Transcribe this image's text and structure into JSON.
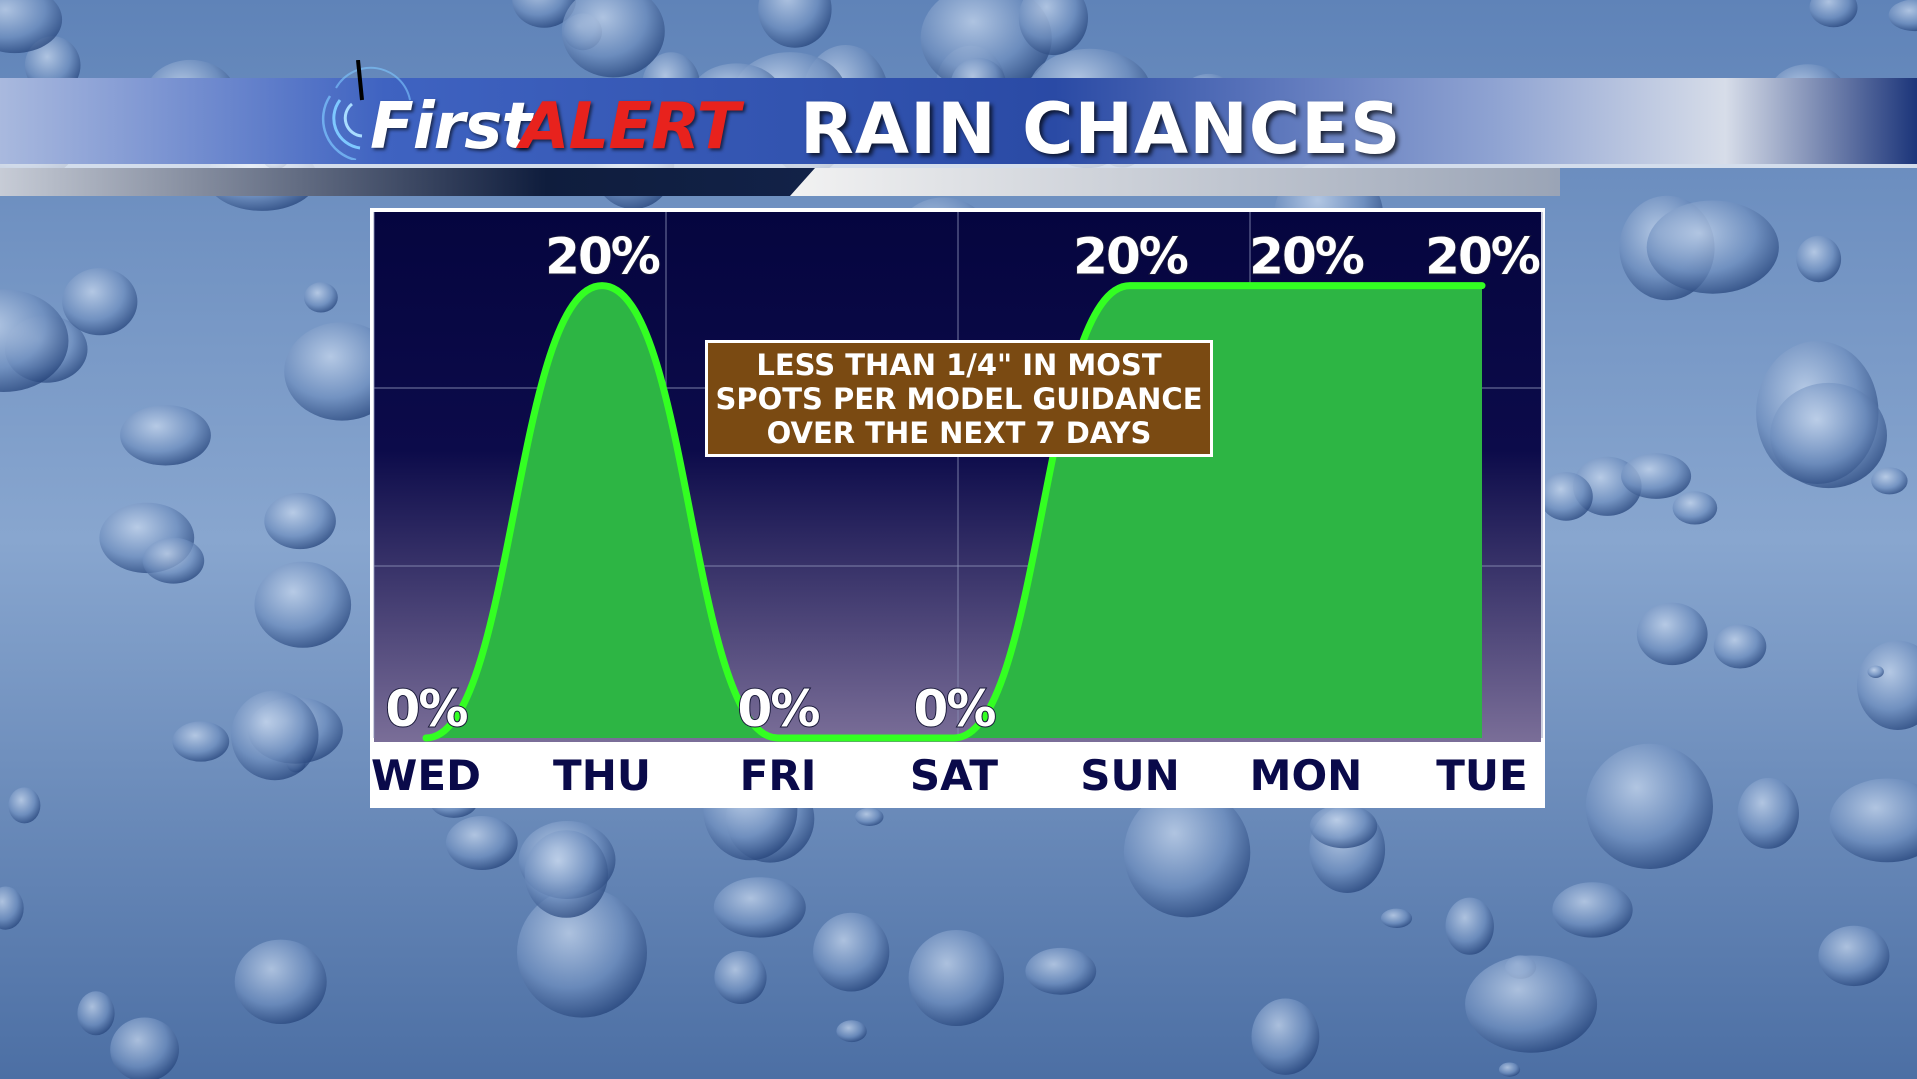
{
  "header": {
    "brand_first": "First",
    "brand_alert": "ALERT",
    "title": "RAIN CHANCES"
  },
  "note": {
    "lines": [
      "LESS THAN 1/4\" IN MOST",
      "SPOTS PER MODEL GUIDANCE",
      "OVER THE NEXT 7 DAYS"
    ]
  },
  "colors": {
    "brand_alert": "#e8221d",
    "plot_top": "#05053f",
    "plot_bottom": "#7a6e98",
    "line": "#33ff22",
    "fill": "#2db544",
    "note_bg": "#7a4a12",
    "day_label": "#0a0a4a"
  },
  "icons": {
    "logo": "radar-antenna-icon"
  },
  "chart_data": {
    "type": "area",
    "categories": [
      "WED",
      "THU",
      "FRI",
      "SAT",
      "SUN",
      "MON",
      "TUE"
    ],
    "series": [
      {
        "values": [
          0,
          20,
          0,
          0,
          20,
          20,
          20
        ],
        "labels": [
          "0%",
          "20%",
          "0%",
          "0%",
          "20%",
          "20%",
          "20%"
        ]
      }
    ],
    "ylim": [
      0,
      100
    ],
    "grid": true
  }
}
